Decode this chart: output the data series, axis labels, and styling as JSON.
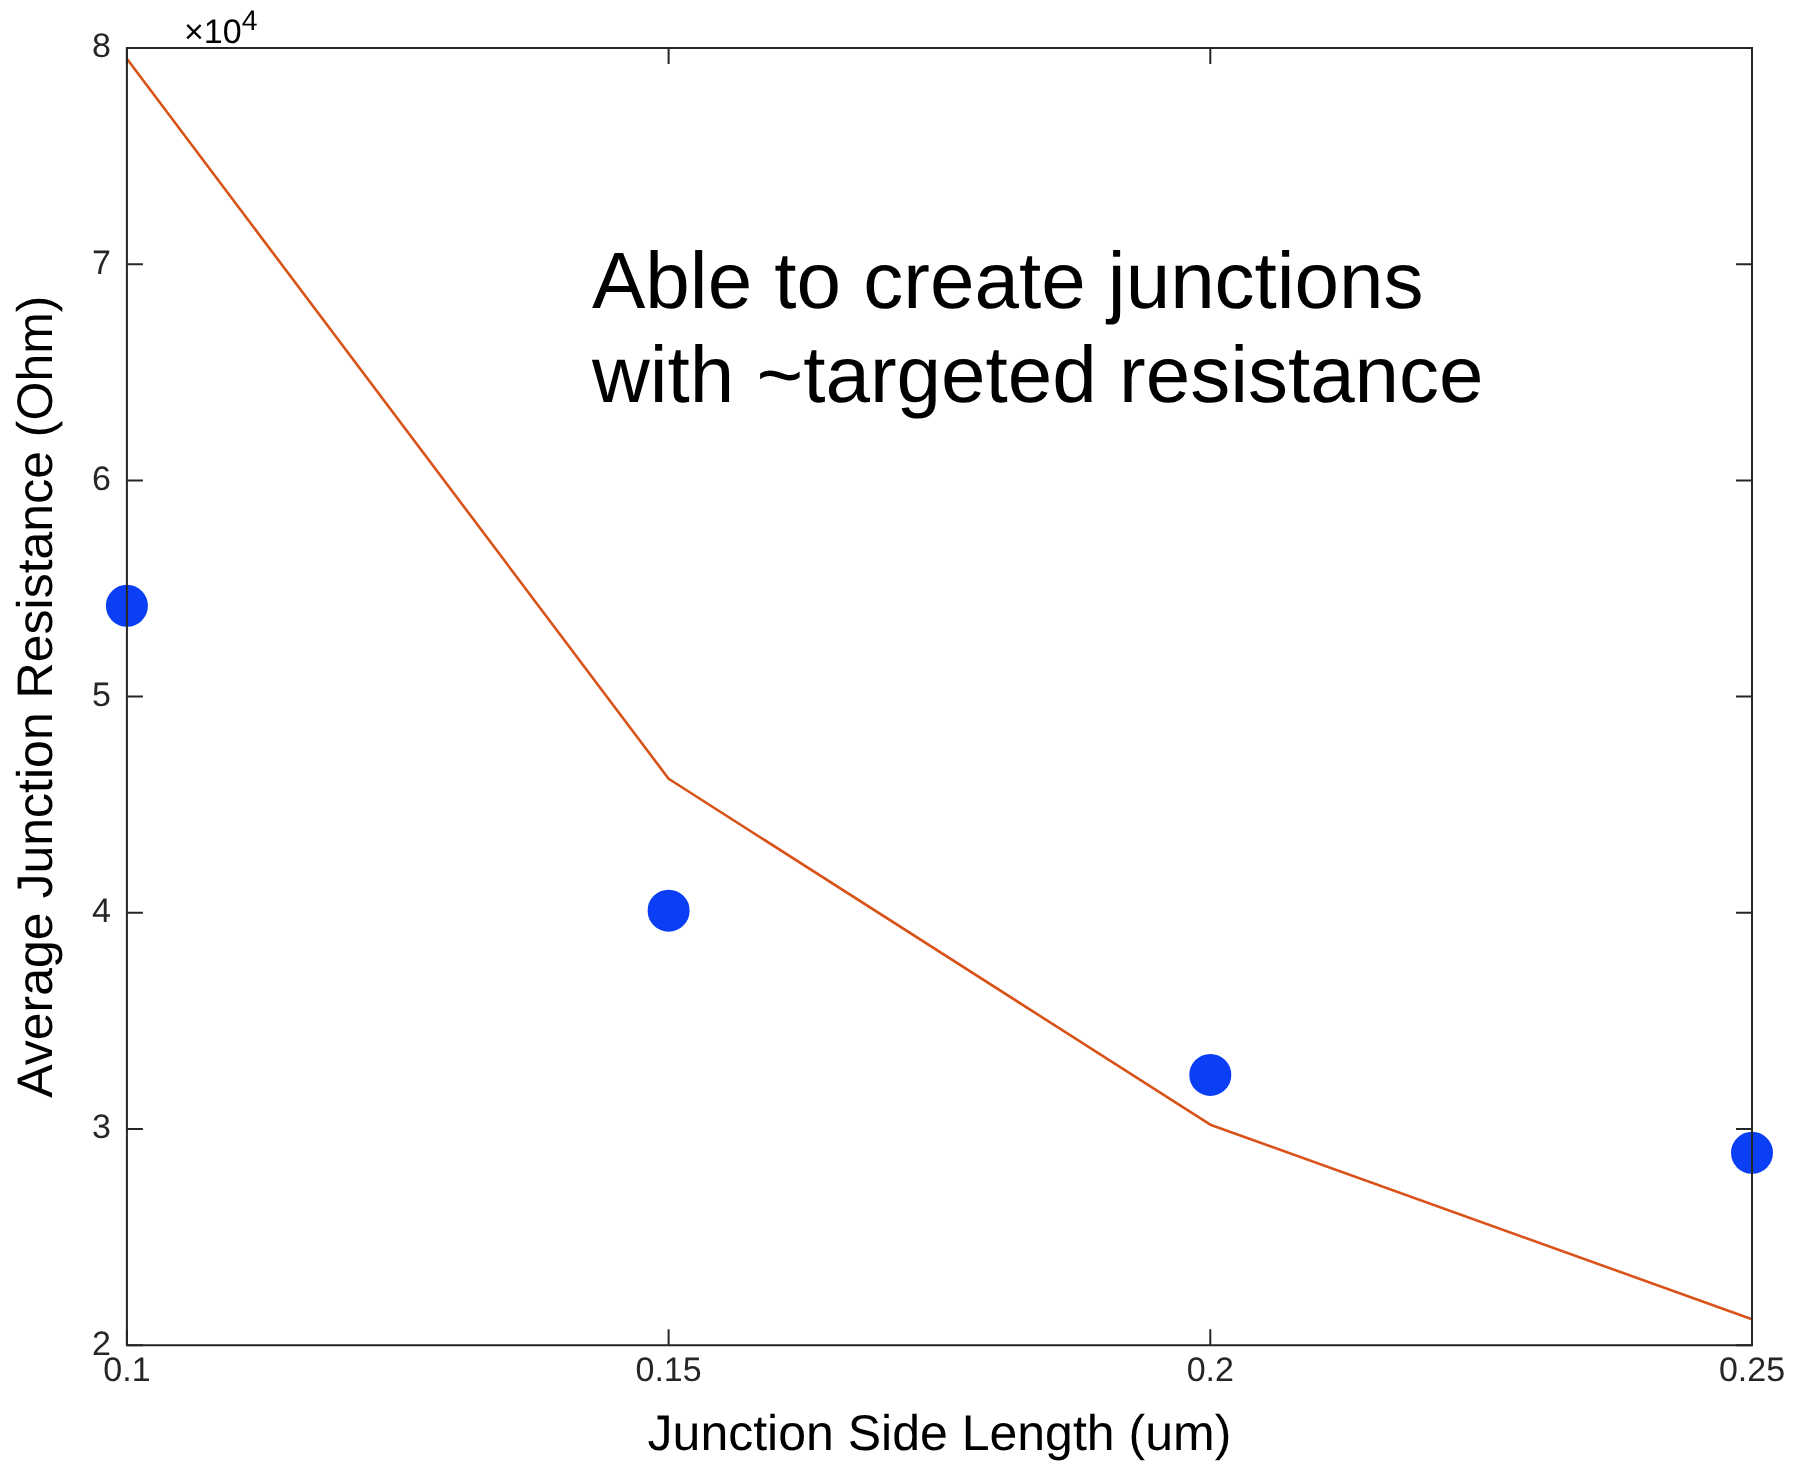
{
  "chart_data": {
    "type": "scatter",
    "xlabel": "Junction Side Length (um)",
    "ylabel": "Average Junction Resistance (Ohm)",
    "annotations": [
      "×10$^{4}$",
      "Able to create junctions\nwith ~targeted resistance"
    ],
    "xlim": [
      0.1,
      0.25
    ],
    "xticks": [
      0.1,
      0.15,
      0.2,
      0.25
    ],
    "ylim": [
      2,
      8
    ],
    "yticks": [
      2,
      3,
      4,
      5,
      6,
      7,
      8
    ],
    "grid": false,
    "legend": false,
    "series": [
      {
        "type": "scatter",
        "color": "#0b3ff5",
        "marker": "circle",
        "x": [
          0.1,
          0.15,
          0.2,
          0.25
        ],
        "values": [
          5.42,
          4.01,
          3.25,
          2.89
        ]
      },
      {
        "type": "line",
        "color": "#d95319",
        "marker": "none",
        "line_style": "solid",
        "x": [
          0.1,
          0.15,
          0.2,
          0.25
        ],
        "values": [
          7.95,
          4.62,
          3.02,
          2.12
        ]
      }
    ]
  }
}
